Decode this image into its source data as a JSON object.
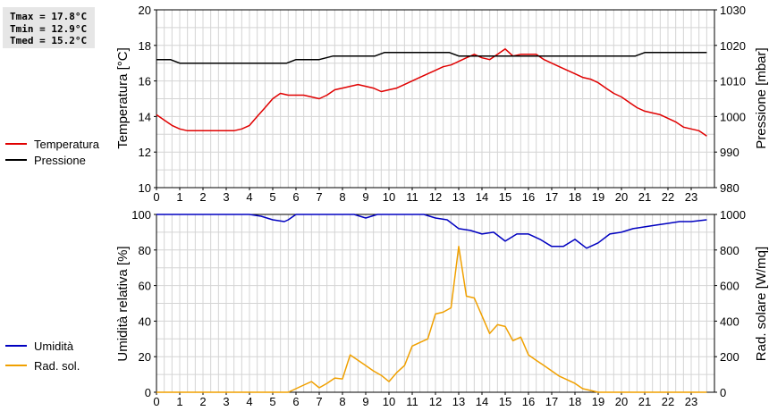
{
  "stats": {
    "tmax": "Tmax = 17.8°C",
    "tmin": "Tmin = 12.9°C",
    "tmed": "Tmed = 15.2°C"
  },
  "colors": {
    "temperatura": "#e00000",
    "pressione": "#000000",
    "umidita": "#0000c0",
    "radsol": "#f0a000",
    "grid": "#d4d4d4"
  },
  "chart_data": [
    {
      "type": "line",
      "xlabel": "",
      "ylabel": "Temperatura [°C]",
      "y2label": "Pressione [mbar]",
      "xlim": [
        0,
        24
      ],
      "ylim": [
        10,
        20
      ],
      "y2lim": [
        980,
        1030
      ],
      "x_ticks": [
        0,
        1,
        2,
        3,
        4,
        5,
        6,
        7,
        8,
        9,
        10,
        11,
        12,
        13,
        14,
        15,
        16,
        17,
        18,
        19,
        20,
        21,
        22,
        23
      ],
      "y_ticks": [
        10,
        12,
        14,
        16,
        18,
        20
      ],
      "y2_ticks": [
        980,
        990,
        1000,
        1010,
        1020,
        1030
      ],
      "grid": true,
      "legend_position": "left",
      "series": [
        {
          "name": "Temperatura",
          "axis": "left",
          "color": "#e00000",
          "x": [
            0,
            0.33,
            0.67,
            1,
            1.33,
            1.67,
            2,
            2.33,
            2.67,
            3,
            3.33,
            3.67,
            4,
            4.33,
            4.67,
            5,
            5.33,
            5.67,
            6,
            6.33,
            6.67,
            7,
            7.33,
            7.67,
            8,
            8.33,
            8.67,
            9,
            9.33,
            9.67,
            10,
            10.33,
            10.67,
            11,
            11.33,
            11.67,
            12,
            12.33,
            12.67,
            13,
            13.33,
            13.67,
            14,
            14.33,
            14.67,
            15,
            15.33,
            15.67,
            16,
            16.33,
            16.67,
            17,
            17.33,
            17.67,
            18,
            18.33,
            18.67,
            19,
            19.33,
            19.67,
            20,
            20.33,
            20.67,
            21,
            21.33,
            21.67,
            22,
            22.33,
            22.67,
            23,
            23.33,
            23.67
          ],
          "values": [
            14.1,
            13.8,
            13.5,
            13.3,
            13.2,
            13.2,
            13.2,
            13.2,
            13.2,
            13.2,
            13.2,
            13.3,
            13.5,
            14.0,
            14.5,
            15.0,
            15.3,
            15.2,
            15.2,
            15.2,
            15.1,
            15.0,
            15.2,
            15.5,
            15.6,
            15.7,
            15.8,
            15.7,
            15.6,
            15.4,
            15.5,
            15.6,
            15.8,
            16.0,
            16.2,
            16.4,
            16.6,
            16.8,
            16.9,
            17.1,
            17.3,
            17.5,
            17.3,
            17.2,
            17.5,
            17.8,
            17.4,
            17.5,
            17.5,
            17.5,
            17.2,
            17.0,
            16.8,
            16.6,
            16.4,
            16.2,
            16.1,
            15.9,
            15.6,
            15.3,
            15.1,
            14.8,
            14.5,
            14.3,
            14.2,
            14.1,
            13.9,
            13.7,
            13.4,
            13.3,
            13.2,
            12.9
          ]
        },
        {
          "name": "Pressione",
          "axis": "right",
          "color": "#000000",
          "x": [
            0,
            0.6,
            1.0,
            5.6,
            6.0,
            7.0,
            7.6,
            9.4,
            9.8,
            12.6,
            13.0,
            20.6,
            21.0,
            23.67
          ],
          "values": [
            1016,
            1016,
            1015,
            1015,
            1016,
            1016,
            1017,
            1017,
            1018,
            1018,
            1017,
            1017,
            1018,
            1018
          ]
        }
      ]
    },
    {
      "type": "line",
      "xlabel": "",
      "ylabel": "Umidità relativa [%]",
      "y2label": "Rad. solare [W/mq]",
      "xlim": [
        0,
        24
      ],
      "ylim": [
        0,
        100
      ],
      "y2lim": [
        0,
        1000
      ],
      "x_ticks": [
        0,
        1,
        2,
        3,
        4,
        5,
        6,
        7,
        8,
        9,
        10,
        11,
        12,
        13,
        14,
        15,
        16,
        17,
        18,
        19,
        20,
        21,
        22,
        23
      ],
      "y_ticks": [
        0,
        20,
        40,
        60,
        80,
        100
      ],
      "y2_ticks": [
        0,
        200,
        400,
        600,
        800,
        1000
      ],
      "grid": true,
      "legend_position": "left",
      "series": [
        {
          "name": "Umidità",
          "axis": "left",
          "color": "#0000c0",
          "x": [
            0,
            1,
            2,
            3,
            4,
            4.5,
            5,
            5.5,
            5.67,
            6,
            6.5,
            7,
            7.5,
            8,
            8.5,
            9,
            9.5,
            10,
            10.5,
            11,
            11.5,
            12,
            12.5,
            13,
            13.5,
            14,
            14.5,
            15,
            15.5,
            16,
            16.5,
            17,
            17.5,
            18,
            18.5,
            19,
            19.5,
            20,
            20.5,
            21,
            21.5,
            22,
            22.5,
            23,
            23.67
          ],
          "values": [
            100,
            100,
            100,
            100,
            100,
            99,
            97,
            96,
            97,
            100,
            100,
            100,
            100,
            100,
            100,
            98,
            100,
            100,
            100,
            100,
            100,
            98,
            97,
            92,
            91,
            89,
            90,
            85,
            89,
            89,
            86,
            82,
            82,
            86,
            81,
            84,
            89,
            90,
            92,
            93,
            94,
            95,
            96,
            96,
            97
          ]
        },
        {
          "name": "Rad. sol.",
          "axis": "right",
          "color": "#f0a000",
          "x": [
            0,
            1,
            2,
            3,
            4,
            5,
            5.67,
            6.0,
            6.33,
            6.67,
            7.0,
            7.33,
            7.67,
            8.0,
            8.33,
            8.67,
            9.0,
            9.33,
            9.67,
            10.0,
            10.33,
            10.67,
            11.0,
            11.33,
            11.67,
            12.0,
            12.33,
            12.67,
            13.0,
            13.33,
            13.67,
            14.0,
            14.33,
            14.67,
            15.0,
            15.33,
            15.67,
            16.0,
            16.33,
            16.67,
            17.0,
            17.33,
            17.67,
            18.0,
            18.33,
            18.67,
            19.0,
            19.33,
            20,
            21,
            22,
            23,
            23.67
          ],
          "values": [
            0,
            0,
            0,
            0,
            0,
            0,
            0,
            20,
            40,
            60,
            25,
            50,
            80,
            75,
            210,
            180,
            150,
            120,
            95,
            60,
            110,
            150,
            260,
            280,
            300,
            440,
            450,
            475,
            820,
            540,
            530,
            430,
            330,
            380,
            370,
            290,
            310,
            210,
            180,
            150,
            120,
            90,
            70,
            50,
            20,
            10,
            0,
            0,
            0,
            0,
            0,
            0,
            0
          ]
        }
      ]
    }
  ]
}
